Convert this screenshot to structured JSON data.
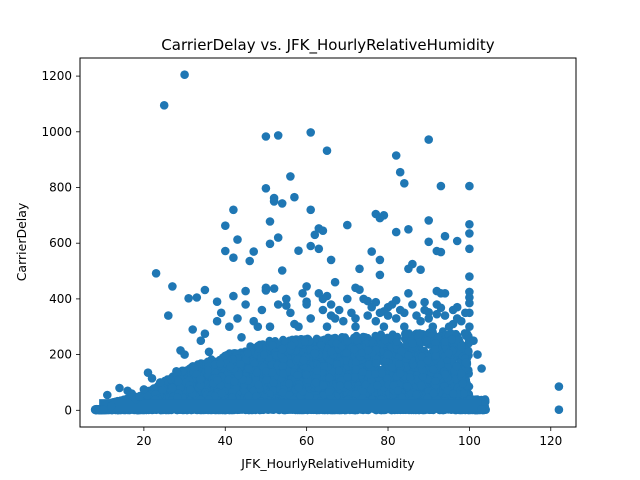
{
  "chart_data": {
    "type": "scatter",
    "title": "CarrierDelay vs. JFK_HourlyRelativeHumidity",
    "xlabel": "JFK_HourlyRelativeHumidity",
    "ylabel": "CarrierDelay",
    "xlim": [
      4.3,
      126.2
    ],
    "ylim": [
      -60,
      1265
    ],
    "xticks": [
      20,
      40,
      60,
      80,
      100,
      120
    ],
    "yticks": [
      0,
      200,
      400,
      600,
      800,
      1000,
      1200
    ],
    "grid": false,
    "legend": "none",
    "series": [
      {
        "color": "#1f77b4",
        "points": [
          [
            30,
            1205
          ],
          [
            25,
            1095
          ],
          [
            61,
            998
          ],
          [
            53,
            987
          ],
          [
            50,
            983
          ],
          [
            90,
            972
          ],
          [
            65,
            932
          ],
          [
            82,
            915
          ],
          [
            83,
            855
          ],
          [
            56,
            840
          ],
          [
            84,
            815
          ],
          [
            93,
            805
          ],
          [
            100,
            805
          ],
          [
            50,
            797
          ],
          [
            52,
            762
          ],
          [
            52,
            750
          ],
          [
            57,
            765
          ],
          [
            54,
            743
          ],
          [
            42,
            720
          ],
          [
            61,
            720
          ],
          [
            77,
            705
          ],
          [
            79,
            700
          ],
          [
            78,
            690
          ],
          [
            51,
            678
          ],
          [
            90,
            682
          ],
          [
            100,
            668
          ],
          [
            70,
            665
          ],
          [
            63,
            653
          ],
          [
            64,
            645
          ],
          [
            40,
            663
          ],
          [
            100,
            635
          ],
          [
            82,
            640
          ],
          [
            85,
            650
          ],
          [
            62,
            630
          ],
          [
            94,
            625
          ],
          [
            53,
            620
          ],
          [
            43,
            613
          ],
          [
            51,
            598
          ],
          [
            97,
            608
          ],
          [
            90,
            605
          ],
          [
            61,
            590
          ],
          [
            63,
            580
          ],
          [
            100,
            580
          ],
          [
            58,
            573
          ],
          [
            40,
            572
          ],
          [
            47,
            570
          ],
          [
            76,
            570
          ],
          [
            92,
            572
          ],
          [
            93,
            568
          ],
          [
            42,
            548
          ],
          [
            66,
            540
          ],
          [
            46,
            536
          ],
          [
            78,
            540
          ],
          [
            86,
            525
          ],
          [
            85,
            508
          ],
          [
            73,
            508
          ],
          [
            88,
            505
          ],
          [
            54,
            502
          ],
          [
            23,
            492
          ],
          [
            100,
            480
          ],
          [
            78,
            486
          ],
          [
            67,
            460
          ],
          [
            60,
            445
          ],
          [
            72,
            440
          ],
          [
            73,
            433
          ],
          [
            52,
            437
          ],
          [
            27,
            445
          ],
          [
            50,
            440
          ],
          [
            92,
            428
          ],
          [
            100,
            425
          ],
          [
            35,
            432
          ],
          [
            45,
            428
          ],
          [
            94,
            420
          ],
          [
            65,
            410
          ],
          [
            64,
            400
          ],
          [
            42,
            410
          ],
          [
            33,
            405
          ],
          [
            31,
            402
          ],
          [
            100,
            405
          ],
          [
            75,
            392
          ],
          [
            77,
            388
          ],
          [
            82,
            395
          ],
          [
            89,
            388
          ],
          [
            55,
            376
          ],
          [
            100,
            385
          ],
          [
            60,
            390
          ],
          [
            97,
            370
          ],
          [
            93,
            368
          ],
          [
            38,
            390
          ],
          [
            80,
            370
          ],
          [
            79,
            355
          ],
          [
            84,
            350
          ],
          [
            90,
            352
          ],
          [
            26,
            340
          ],
          [
            92,
            345
          ],
          [
            66,
            340
          ],
          [
            100,
            350
          ],
          [
            57,
            310
          ],
          [
            32,
            290
          ],
          [
            48,
            300
          ],
          [
            72,
            300
          ],
          [
            96,
            310
          ],
          [
            35,
            275
          ],
          [
            44,
            262
          ],
          [
            70,
            250
          ],
          [
            86,
            240
          ],
          [
            98,
            230
          ],
          [
            54,
            220
          ],
          [
            29,
            215
          ],
          [
            62,
            205
          ],
          [
            80,
            200
          ],
          [
            21,
            135
          ],
          [
            22,
            115
          ],
          [
            24,
            100
          ],
          [
            27,
            80
          ],
          [
            17,
            60
          ],
          [
            122,
            85
          ],
          [
            122,
            2
          ],
          [
            104,
            2
          ],
          [
            103,
            3
          ],
          [
            8,
            2
          ],
          [
            9,
            2
          ],
          [
            10,
            3
          ],
          [
            11,
            55
          ],
          [
            12,
            15
          ],
          [
            14,
            80
          ],
          [
            16,
            70
          ],
          [
            18,
            40
          ],
          [
            19,
            50
          ],
          [
            20,
            75
          ],
          [
            28,
            140
          ],
          [
            30,
            200
          ],
          [
            34,
            250
          ],
          [
            36,
            210
          ],
          [
            38,
            320
          ],
          [
            39,
            350
          ],
          [
            41,
            300
          ],
          [
            43,
            330
          ],
          [
            45,
            380
          ],
          [
            47,
            320
          ],
          [
            49,
            360
          ],
          [
            50,
            430
          ],
          [
            51,
            300
          ],
          [
            53,
            380
          ],
          [
            55,
            400
          ],
          [
            56,
            350
          ],
          [
            58,
            300
          ],
          [
            59,
            420
          ],
          [
            60,
            380
          ],
          [
            61,
            330
          ],
          [
            63,
            420
          ],
          [
            64,
            360
          ],
          [
            65,
            300
          ],
          [
            66,
            380
          ],
          [
            67,
            330
          ],
          [
            68,
            360
          ],
          [
            69,
            320
          ],
          [
            70,
            400
          ],
          [
            71,
            350
          ],
          [
            72,
            330
          ],
          [
            74,
            400
          ],
          [
            75,
            340
          ],
          [
            76,
            370
          ],
          [
            77,
            320
          ],
          [
            78,
            350
          ],
          [
            79,
            300
          ],
          [
            80,
            340
          ],
          [
            81,
            380
          ],
          [
            82,
            330
          ],
          [
            83,
            360
          ],
          [
            84,
            300
          ],
          [
            85,
            420
          ],
          [
            86,
            380
          ],
          [
            87,
            340
          ],
          [
            88,
            320
          ],
          [
            89,
            360
          ],
          [
            90,
            330
          ],
          [
            91,
            300
          ],
          [
            92,
            380
          ],
          [
            93,
            420
          ],
          [
            94,
            340
          ],
          [
            95,
            300
          ],
          [
            96,
            360
          ],
          [
            97,
            330
          ],
          [
            98,
            320
          ],
          [
            99,
            350
          ],
          [
            100,
            300
          ],
          [
            101,
            250
          ],
          [
            102,
            200
          ],
          [
            103,
            150
          ]
        ]
      }
    ]
  }
}
